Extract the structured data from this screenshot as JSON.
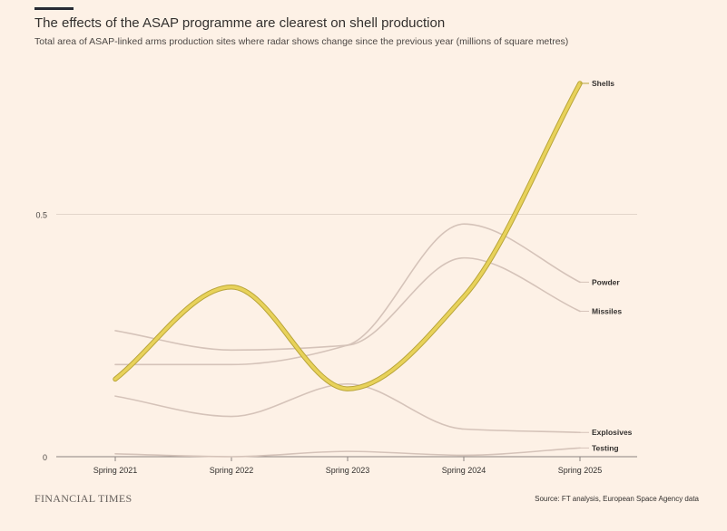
{
  "header": {
    "title": "The effects of the ASAP programme are clearest on shell production",
    "subtitle": "Total area of ASAP-linked arms production sites where radar shows change since the previous year (millions of square metres)"
  },
  "footer": {
    "brand": "FINANCIAL TIMES",
    "source": "Source: FT analysis, European Space Agency data"
  },
  "colors": {
    "background": "#fdf1e6",
    "highlight_line": "#e8d25a",
    "highlight_outline": "#b9a53a",
    "muted_line": "#d5c3b9",
    "grid": "#d9cbc0",
    "baseline": "#8c8480"
  },
  "chart_data": {
    "type": "line",
    "title": "The effects of the ASAP programme are clearest on shell production",
    "xlabel": "",
    "ylabel": "",
    "categories": [
      "Spring 2021",
      "Spring 2022",
      "Spring 2023",
      "Spring 2024",
      "Spring 2025"
    ],
    "ylim": [
      0,
      0.77
    ],
    "yticks": [
      0,
      0.5
    ],
    "ytick_labels": [
      "0",
      "0.5"
    ],
    "highlight": "Shells",
    "series": [
      {
        "name": "Shells",
        "label": "Shells",
        "values": [
          0.16,
          0.35,
          0.14,
          0.33,
          0.77
        ]
      },
      {
        "name": "Powder",
        "label": "Powder",
        "values": [
          0.19,
          0.19,
          0.23,
          0.48,
          0.36
        ]
      },
      {
        "name": "Missiles",
        "label": "Missiles",
        "values": [
          0.26,
          0.22,
          0.23,
          0.41,
          0.3
        ]
      },
      {
        "name": "Explosives",
        "label": "Explosives",
        "values": [
          0.125,
          0.083,
          0.15,
          0.057,
          0.05
        ]
      },
      {
        "name": "Testing",
        "label": "Testing",
        "values": [
          0.006,
          0.0,
          0.011,
          0.003,
          0.018
        ]
      }
    ]
  }
}
